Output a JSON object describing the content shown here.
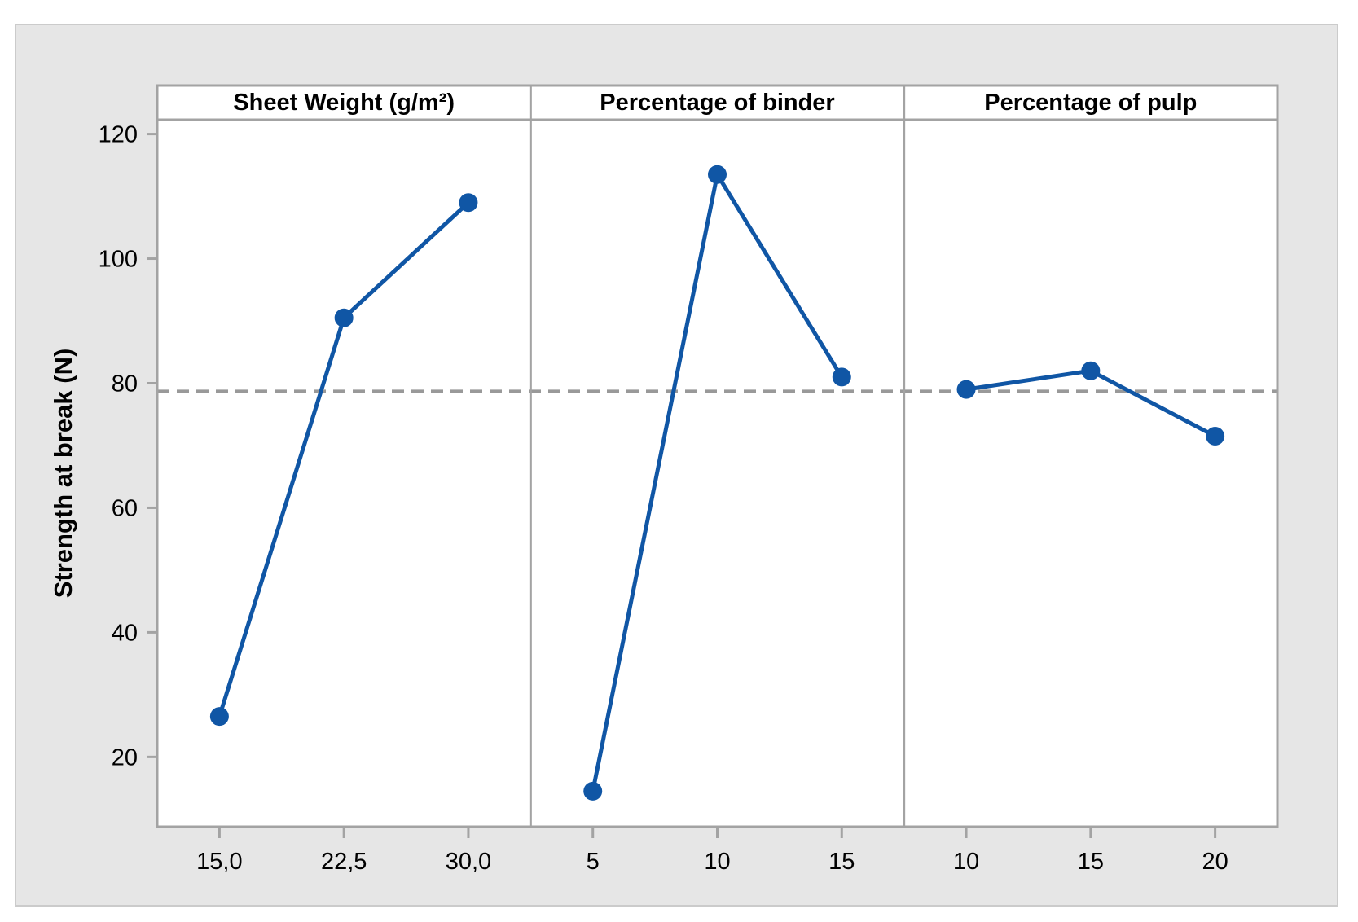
{
  "chart_data": {
    "type": "line",
    "subtype": "main-effects-plot",
    "title": "",
    "ylabel": "Strength at break (N)",
    "ylim": [
      8.8,
      122.3
    ],
    "yticks": [
      20,
      40,
      60,
      80,
      100,
      120
    ],
    "grid": false,
    "legend": null,
    "reference_line": 78.7,
    "panels": [
      {
        "title": "Sheet Weight (g/m²)",
        "categories": [
          "15,0",
          "22,5",
          "30,0"
        ],
        "values": [
          26.5,
          90.5,
          109.0
        ]
      },
      {
        "title": "Percentage of binder",
        "categories": [
          "5",
          "10",
          "15"
        ],
        "values": [
          14.5,
          113.5,
          81.0
        ]
      },
      {
        "title": "Percentage of pulp",
        "categories": [
          "10",
          "15",
          "20"
        ],
        "values": [
          79.0,
          82.0,
          71.5
        ]
      }
    ],
    "colors": {
      "series": "#1056A5",
      "frame": "#A3A3A3",
      "reference_line": "#999999",
      "card_background": "#E6E6E6",
      "card_border": "#CBCBCB",
      "panel_background": "#FFFFFF",
      "text": "#000000"
    }
  }
}
